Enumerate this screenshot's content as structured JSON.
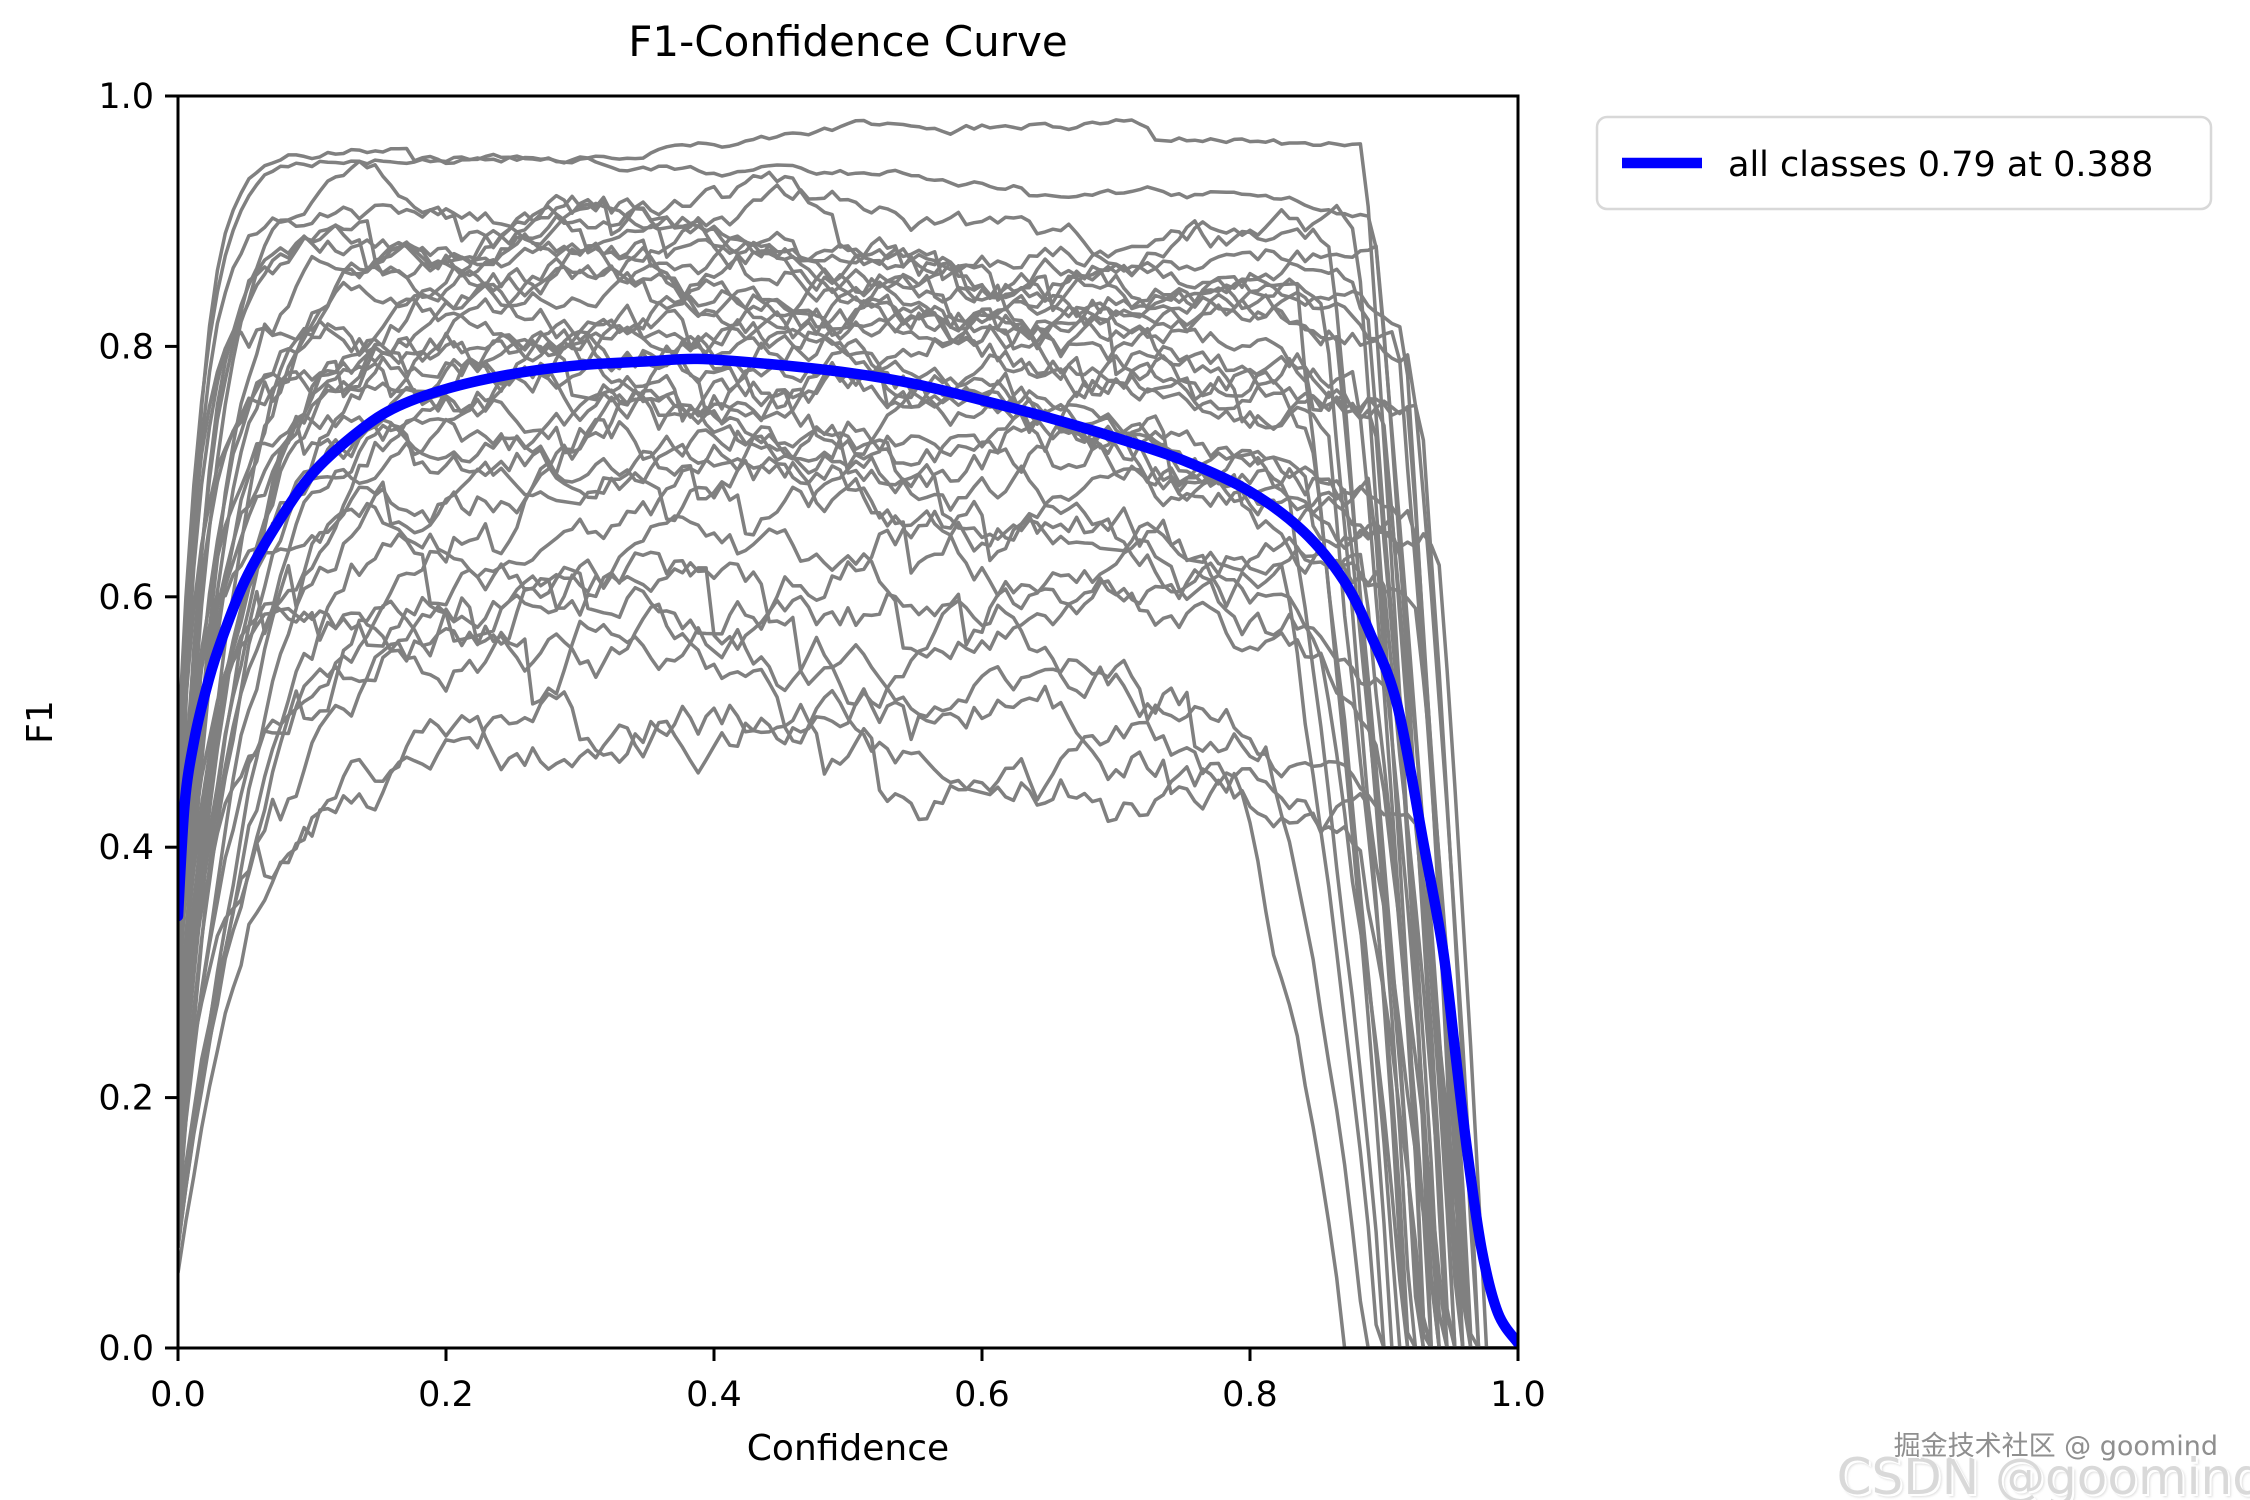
{
  "title": "F1-Confidence Curve",
  "legend": {
    "label": "all classes 0.79 at 0.388"
  },
  "watermarks": {
    "primary": "掘金技术社区 @ goomind",
    "secondary": "CSDN @goomind"
  },
  "colors": {
    "all_classes_line": "#0000ff",
    "class_line": "#808080",
    "axis": "#000000",
    "legend_border": "#d8d8d8",
    "background": "#ffffff",
    "watermark_primary": "#8f8f8f",
    "watermark_secondary": "#d9d9d9"
  },
  "chart_data": {
    "type": "line",
    "title": "F1-Confidence Curve",
    "xlabel": "Confidence",
    "ylabel": "F1",
    "xlim": [
      0,
      1
    ],
    "ylim": [
      0,
      1
    ],
    "x_ticks": [
      0.0,
      0.2,
      0.4,
      0.6,
      0.8,
      1.0
    ],
    "y_ticks": [
      0.0,
      0.2,
      0.4,
      0.6,
      0.8,
      1.0
    ],
    "grid": false,
    "legend_position": "outside upper right",
    "series": [
      {
        "name": "all classes",
        "best_f1": 0.79,
        "best_confidence": 0.388,
        "color": "#0000ff",
        "linewidth": 10.5,
        "points": [
          [
            0.0,
            0.345
          ],
          [
            0.005,
            0.435
          ],
          [
            0.012,
            0.485
          ],
          [
            0.02,
            0.522
          ],
          [
            0.03,
            0.558
          ],
          [
            0.05,
            0.613
          ],
          [
            0.075,
            0.66
          ],
          [
            0.1,
            0.698
          ],
          [
            0.13,
            0.728
          ],
          [
            0.16,
            0.75
          ],
          [
            0.2,
            0.766
          ],
          [
            0.25,
            0.778
          ],
          [
            0.3,
            0.785
          ],
          [
            0.35,
            0.788
          ],
          [
            0.388,
            0.79
          ],
          [
            0.44,
            0.786
          ],
          [
            0.5,
            0.779
          ],
          [
            0.55,
            0.77
          ],
          [
            0.6,
            0.757
          ],
          [
            0.65,
            0.743
          ],
          [
            0.7,
            0.727
          ],
          [
            0.75,
            0.709
          ],
          [
            0.8,
            0.684
          ],
          [
            0.84,
            0.652
          ],
          [
            0.87,
            0.613
          ],
          [
            0.89,
            0.57
          ],
          [
            0.91,
            0.513
          ],
          [
            0.93,
            0.4
          ],
          [
            0.944,
            0.318
          ],
          [
            0.953,
            0.238
          ],
          [
            0.962,
            0.158
          ],
          [
            0.973,
            0.078
          ],
          [
            0.985,
            0.028
          ],
          [
            1.0,
            0.004
          ]
        ]
      }
    ],
    "class_curves": {
      "description": "Per-class F1-confidence curves (thin gray, jagged). Parameters estimated from the plot: s=F1 at confidence 0, r=rise constant, p=plateau peak F1, xp=confidence of peak, climb=slow extra rise to peak, d=quadratic decline after peak, c=confidence where F1 collapses to 0, w=width of collapse, n=noise amplitude.",
      "count": 38,
      "color": "#808080",
      "linewidth": 3.5,
      "params": [
        {
          "s": 0.48,
          "r": 0.02,
          "p": 0.95,
          "xp": 0.65,
          "climb": 0.024,
          "d": 0.3,
          "c": 0.935,
          "w": 0.05,
          "n": 0.003,
          "seed": 11
        },
        {
          "s": 0.3,
          "r": 0.015,
          "p": 0.952,
          "xp": 0.2,
          "climb": 0.0,
          "d": 0.1,
          "c": 0.952,
          "w": 0.06,
          "n": 0.003,
          "seed": 12
        },
        {
          "s": 0.25,
          "r": 0.02,
          "p": 0.908,
          "xp": 0.25,
          "climb": 0.0,
          "d": 0.12,
          "c": 0.945,
          "w": 0.05,
          "n": 0.008,
          "seed": 13
        },
        {
          "s": 0.18,
          "r": 0.03,
          "p": 0.9,
          "xp": 0.3,
          "climb": 0.0,
          "d": 0.1,
          "c": 0.93,
          "w": 0.05,
          "n": 0.009,
          "seed": 14
        },
        {
          "s": 0.35,
          "r": 0.015,
          "p": 0.895,
          "xp": 0.2,
          "climb": 0.0,
          "d": 0.16,
          "c": 0.955,
          "w": 0.04,
          "n": 0.007,
          "seed": 15
        },
        {
          "s": 0.12,
          "r": 0.04,
          "p": 0.888,
          "xp": 0.35,
          "climb": 0.0,
          "d": 0.09,
          "c": 0.92,
          "w": 0.06,
          "n": 0.01,
          "seed": 16
        },
        {
          "s": 0.28,
          "r": 0.025,
          "p": 0.882,
          "xp": 0.25,
          "climb": 0.0,
          "d": 0.18,
          "c": 0.96,
          "w": 0.05,
          "n": 0.008,
          "seed": 17
        },
        {
          "s": 0.2,
          "r": 0.035,
          "p": 0.875,
          "xp": 0.3,
          "climb": 0.0,
          "d": 0.12,
          "c": 0.937,
          "w": 0.05,
          "n": 0.011,
          "seed": 18
        },
        {
          "s": 0.4,
          "r": 0.018,
          "p": 0.868,
          "xp": 0.22,
          "climb": 0.0,
          "d": 0.14,
          "c": 0.97,
          "w": 0.05,
          "n": 0.009,
          "seed": 19
        },
        {
          "s": 0.15,
          "r": 0.045,
          "p": 0.86,
          "xp": 0.35,
          "climb": 0.0,
          "d": 0.11,
          "c": 0.925,
          "w": 0.06,
          "n": 0.01,
          "seed": 20
        },
        {
          "s": 0.32,
          "r": 0.02,
          "p": 0.852,
          "xp": 0.3,
          "climb": 0.0,
          "d": 0.2,
          "c": 0.948,
          "w": 0.05,
          "n": 0.012,
          "seed": 21
        },
        {
          "s": 0.1,
          "r": 0.05,
          "p": 0.845,
          "xp": 0.4,
          "climb": 0.0,
          "d": 0.1,
          "c": 0.915,
          "w": 0.06,
          "n": 0.01,
          "seed": 22
        },
        {
          "s": 0.22,
          "r": 0.03,
          "p": 0.838,
          "xp": 0.28,
          "climb": 0.0,
          "d": 0.22,
          "c": 0.958,
          "w": 0.04,
          "n": 0.009,
          "seed": 23
        },
        {
          "s": 0.45,
          "r": 0.015,
          "p": 0.83,
          "xp": 0.2,
          "climb": 0.0,
          "d": 0.15,
          "c": 0.968,
          "w": 0.04,
          "n": 0.011,
          "seed": 24
        },
        {
          "s": 0.08,
          "r": 0.09,
          "p": 0.822,
          "xp": 0.5,
          "climb": 0.0,
          "d": 0.12,
          "c": 0.905,
          "w": 0.07,
          "n": 0.012,
          "seed": 25
        },
        {
          "s": 0.26,
          "r": 0.025,
          "p": 0.815,
          "xp": 0.3,
          "climb": 0.0,
          "d": 0.25,
          "c": 0.942,
          "w": 0.05,
          "n": 0.01,
          "seed": 26
        },
        {
          "s": 0.18,
          "r": 0.04,
          "p": 0.808,
          "xp": 0.35,
          "climb": 0.0,
          "d": 0.14,
          "c": 0.93,
          "w": 0.05,
          "n": 0.013,
          "seed": 27
        },
        {
          "s": 0.36,
          "r": 0.02,
          "p": 0.8,
          "xp": 0.25,
          "climb": 0.0,
          "d": 0.28,
          "c": 0.962,
          "w": 0.04,
          "n": 0.009,
          "seed": 28
        },
        {
          "s": 0.14,
          "r": 0.05,
          "p": 0.792,
          "xp": 0.4,
          "climb": 0.0,
          "d": 0.11,
          "c": 0.918,
          "w": 0.06,
          "n": 0.012,
          "seed": 29
        },
        {
          "s": 0.3,
          "r": 0.03,
          "p": 0.785,
          "xp": 0.3,
          "climb": 0.0,
          "d": 0.3,
          "c": 0.975,
          "w": 0.035,
          "n": 0.01,
          "seed": 30
        },
        {
          "s": 0.2,
          "r": 0.035,
          "p": 0.775,
          "xp": 0.3,
          "climb": 0.0,
          "d": 0.18,
          "c": 0.94,
          "w": 0.05,
          "n": 0.013,
          "seed": 31
        },
        {
          "s": 0.42,
          "r": 0.018,
          "p": 0.768,
          "xp": 0.22,
          "climb": 0.0,
          "d": 0.22,
          "c": 0.955,
          "w": 0.045,
          "n": 0.011,
          "seed": 32
        },
        {
          "s": 0.1,
          "r": 0.1,
          "p": 0.758,
          "xp": 0.5,
          "climb": 0.0,
          "d": 0.13,
          "c": 0.91,
          "w": 0.065,
          "n": 0.014,
          "seed": 33
        },
        {
          "s": 0.28,
          "r": 0.028,
          "p": 0.748,
          "xp": 0.3,
          "climb": 0.0,
          "d": 0.26,
          "c": 0.948,
          "w": 0.05,
          "n": 0.012,
          "seed": 34
        },
        {
          "s": 0.16,
          "r": 0.045,
          "p": 0.738,
          "xp": 0.38,
          "climb": 0.0,
          "d": 0.16,
          "c": 0.926,
          "w": 0.055,
          "n": 0.013,
          "seed": 35
        },
        {
          "s": 0.34,
          "r": 0.022,
          "p": 0.728,
          "xp": 0.26,
          "climb": 0.0,
          "d": 0.3,
          "c": 0.965,
          "w": 0.04,
          "n": 0.01,
          "seed": 36
        },
        {
          "s": 0.12,
          "r": 0.055,
          "p": 0.718,
          "xp": 0.42,
          "climb": 0.0,
          "d": 0.14,
          "c": 0.9,
          "w": 0.07,
          "n": 0.014,
          "seed": 37
        },
        {
          "s": 0.24,
          "r": 0.032,
          "p": 0.708,
          "xp": 0.32,
          "climb": 0.0,
          "d": 0.24,
          "c": 0.952,
          "w": 0.045,
          "n": 0.012,
          "seed": 38
        },
        {
          "s": 0.18,
          "r": 0.04,
          "p": 0.688,
          "xp": 0.34,
          "climb": 0.0,
          "d": 0.2,
          "c": 0.935,
          "w": 0.05,
          "n": 0.014,
          "seed": 39
        },
        {
          "s": 0.36,
          "r": 0.02,
          "p": 0.668,
          "xp": 0.25,
          "climb": 0.0,
          "d": 0.26,
          "c": 0.958,
          "w": 0.045,
          "n": 0.012,
          "seed": 40
        },
        {
          "s": 0.08,
          "r": 0.065,
          "p": 0.648,
          "xp": 0.45,
          "climb": 0.0,
          "d": 0.15,
          "c": 0.895,
          "w": 0.07,
          "n": 0.015,
          "seed": 41
        },
        {
          "s": 0.26,
          "r": 0.03,
          "p": 0.628,
          "xp": 0.3,
          "climb": 0.0,
          "d": 0.28,
          "c": 0.945,
          "w": 0.05,
          "n": 0.013,
          "seed": 42
        },
        {
          "s": 0.14,
          "r": 0.05,
          "p": 0.608,
          "xp": 0.4,
          "climb": 0.0,
          "d": 0.18,
          "c": 0.915,
          "w": 0.06,
          "n": 0.015,
          "seed": 43
        },
        {
          "s": 0.3,
          "r": 0.025,
          "p": 0.588,
          "xp": 0.28,
          "climb": 0.0,
          "d": 0.32,
          "c": 0.962,
          "w": 0.04,
          "n": 0.012,
          "seed": 44
        },
        {
          "s": 0.1,
          "r": 0.06,
          "p": 0.565,
          "xp": 0.42,
          "climb": 0.0,
          "d": 0.22,
          "c": 0.885,
          "w": 0.07,
          "n": 0.016,
          "seed": 45
        },
        {
          "s": 0.22,
          "r": 0.035,
          "p": 0.545,
          "xp": 0.3,
          "climb": 0.0,
          "d": 0.35,
          "c": 0.93,
          "w": 0.05,
          "n": 0.014,
          "seed": 46
        },
        {
          "s": 0.06,
          "r": 0.07,
          "p": 0.52,
          "xp": 0.45,
          "climb": 0.0,
          "d": 0.28,
          "c": 0.87,
          "w": 0.08,
          "n": 0.016,
          "seed": 47
        },
        {
          "s": 0.16,
          "r": 0.045,
          "p": 0.5,
          "xp": 0.35,
          "climb": 0.0,
          "d": 0.4,
          "c": 0.94,
          "w": 0.05,
          "n": 0.015,
          "seed": 48
        }
      ]
    }
  }
}
